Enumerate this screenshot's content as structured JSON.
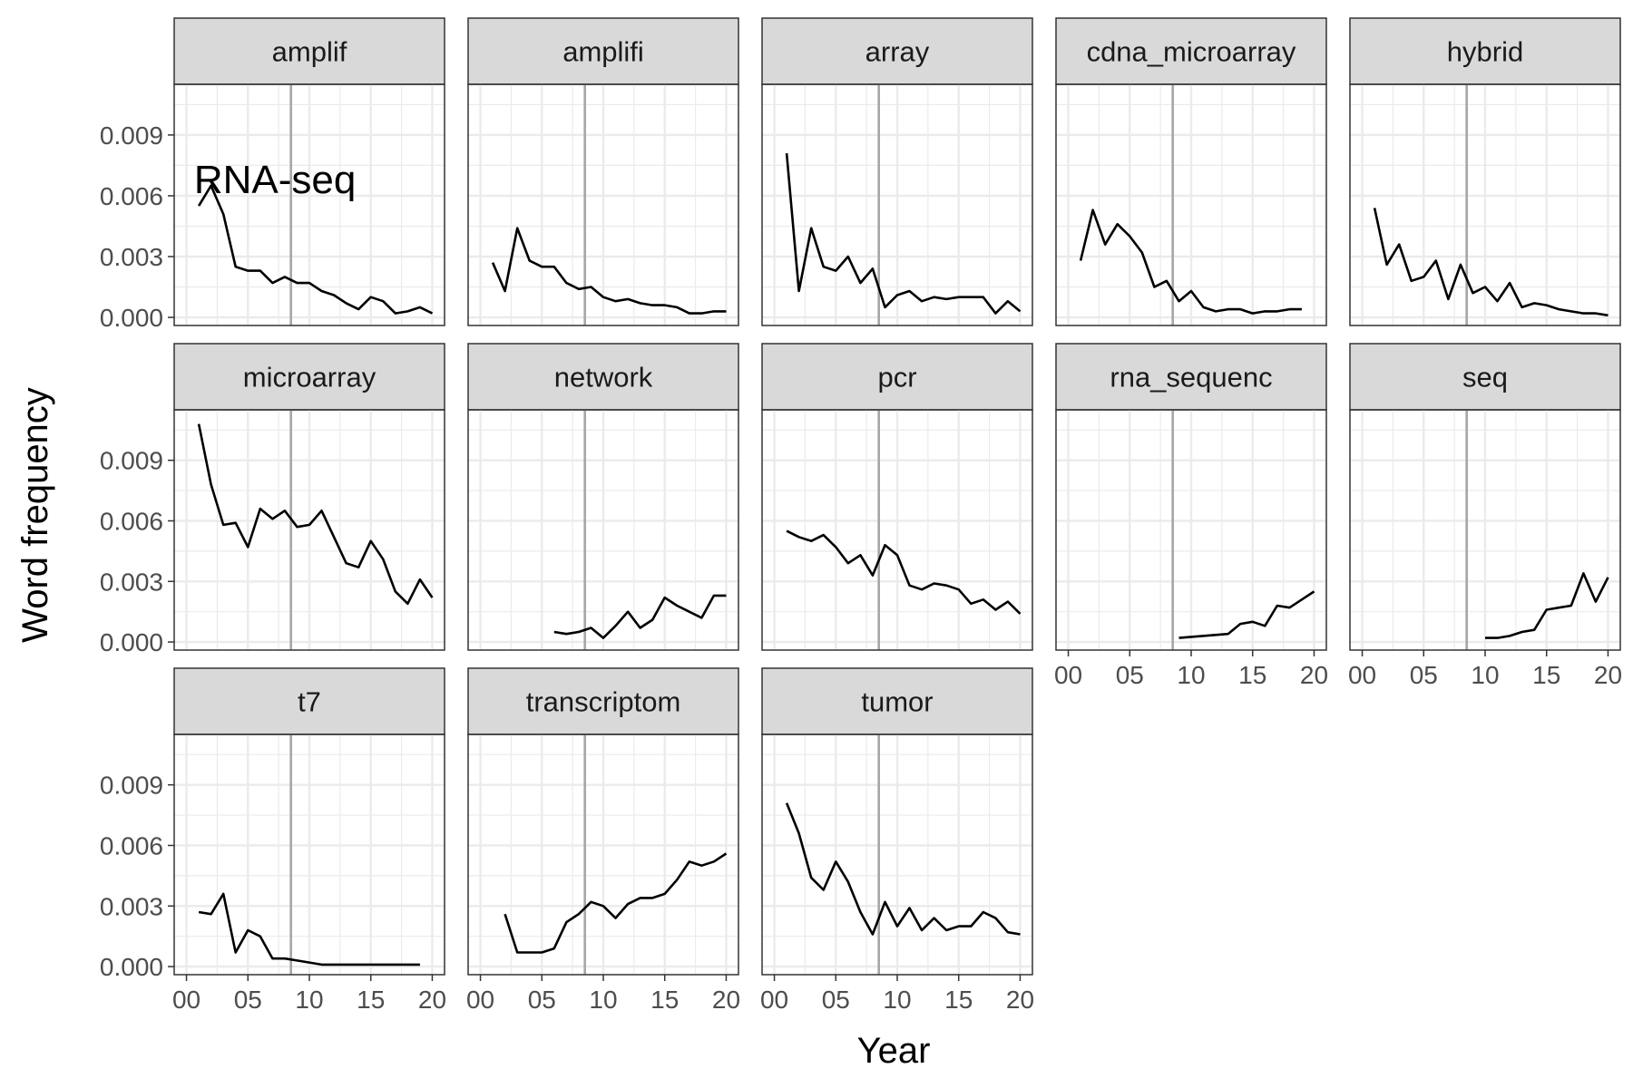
{
  "chart_data": {
    "type": "line",
    "layout": "facet_wrap",
    "xlabel": "Year",
    "ylabel": "Word frequency",
    "xlim": [
      -1,
      21
    ],
    "ylim": [
      -0.0004,
      0.0115
    ],
    "x_ticks": [
      0,
      5,
      10,
      15,
      20
    ],
    "x_tick_labels": [
      "00",
      "05",
      "10",
      "15",
      "20"
    ],
    "y_ticks": [
      0,
      0.003,
      0.006,
      0.009
    ],
    "y_tick_labels": [
      "0.000",
      "0.003",
      "0.006",
      "0.009"
    ],
    "grid": true,
    "reference_line_x": 8.5,
    "annotation": {
      "text": "RNA-seq",
      "x": 7.2,
      "y": 0.0068,
      "panel": "amplif"
    },
    "colors": {
      "line": "#000000",
      "strip_bg": "#d9d9d9",
      "grid": "#ebebeb",
      "vline": "#a6a6a6",
      "border": "#333333"
    },
    "panels": [
      {
        "title": "amplif",
        "x": [
          1,
          2,
          3,
          4,
          5,
          6,
          7,
          8,
          9,
          10,
          11,
          12,
          13,
          14,
          15,
          16,
          17,
          18,
          19,
          20
        ],
        "y": [
          0.0055,
          0.0065,
          0.0051,
          0.0025,
          0.0023,
          0.0023,
          0.0017,
          0.002,
          0.0017,
          0.0017,
          0.0013,
          0.0011,
          0.0007,
          0.0004,
          0.001,
          0.0008,
          0.0002,
          0.0003,
          0.0005,
          0.0002
        ]
      },
      {
        "title": "amplifi",
        "x": [
          1,
          2,
          3,
          4,
          5,
          6,
          7,
          8,
          9,
          10,
          11,
          12,
          13,
          14,
          15,
          16,
          17,
          18,
          19,
          20
        ],
        "y": [
          0.0027,
          0.0013,
          0.0044,
          0.0028,
          0.0025,
          0.0025,
          0.0017,
          0.0014,
          0.0015,
          0.001,
          0.0008,
          0.0009,
          0.0007,
          0.0006,
          0.0006,
          0.0005,
          0.0002,
          0.0002,
          0.0003,
          0.0003
        ]
      },
      {
        "title": "array",
        "x": [
          1,
          2,
          3,
          4,
          5,
          6,
          7,
          8,
          9,
          10,
          11,
          12,
          13,
          14,
          15,
          16,
          17,
          18,
          19,
          20
        ],
        "y": [
          0.0081,
          0.0013,
          0.0044,
          0.0025,
          0.0023,
          0.003,
          0.0017,
          0.0024,
          0.0005,
          0.0011,
          0.0013,
          0.0008,
          0.001,
          0.0009,
          0.001,
          0.001,
          0.001,
          0.0002,
          0.0008,
          0.0003
        ]
      },
      {
        "title": "cdna_microarray",
        "x": [
          1,
          2,
          3,
          4,
          5,
          6,
          7,
          8,
          9,
          10,
          11,
          12,
          13,
          14,
          15,
          16,
          17,
          18,
          19
        ],
        "y": [
          0.0028,
          0.0053,
          0.0036,
          0.0046,
          0.004,
          0.0032,
          0.0015,
          0.0018,
          0.0008,
          0.0013,
          0.0005,
          0.0003,
          0.0004,
          0.0004,
          0.0002,
          0.0003,
          0.0003,
          0.0004,
          0.0004
        ]
      },
      {
        "title": "hybrid",
        "x": [
          1,
          2,
          3,
          4,
          5,
          6,
          7,
          8,
          9,
          10,
          11,
          12,
          13,
          14,
          15,
          16,
          17,
          18,
          19,
          20
        ],
        "y": [
          0.0054,
          0.0026,
          0.0036,
          0.0018,
          0.002,
          0.0028,
          0.0009,
          0.0026,
          0.0012,
          0.0015,
          0.0008,
          0.0017,
          0.0005,
          0.0007,
          0.0006,
          0.0004,
          0.0003,
          0.0002,
          0.0002,
          0.0001
        ]
      },
      {
        "title": "microarray",
        "x": [
          1,
          2,
          3,
          4,
          5,
          6,
          7,
          8,
          9,
          10,
          11,
          12,
          13,
          14,
          15,
          16,
          17,
          18,
          19,
          20
        ],
        "y": [
          0.0108,
          0.0078,
          0.0058,
          0.0059,
          0.0047,
          0.0066,
          0.0061,
          0.0065,
          0.0057,
          0.0058,
          0.0065,
          0.0052,
          0.0039,
          0.0037,
          0.005,
          0.0041,
          0.0025,
          0.0019,
          0.0031,
          0.0022
        ]
      },
      {
        "title": "network",
        "x": [
          6,
          7,
          8,
          9,
          10,
          11,
          12,
          13,
          14,
          15,
          16,
          17,
          18,
          19,
          20
        ],
        "y": [
          0.0005,
          0.0004,
          0.0005,
          0.0007,
          0.0002,
          0.0008,
          0.0015,
          0.0007,
          0.0011,
          0.0022,
          0.0018,
          0.0015,
          0.0012,
          0.0023,
          0.0023
        ]
      },
      {
        "title": "pcr",
        "x": [
          1,
          2,
          3,
          4,
          5,
          6,
          7,
          8,
          9,
          10,
          11,
          12,
          13,
          14,
          15,
          16,
          17,
          18,
          19,
          20
        ],
        "y": [
          0.0055,
          0.0052,
          0.005,
          0.0053,
          0.0047,
          0.0039,
          0.0043,
          0.0033,
          0.0048,
          0.0043,
          0.0028,
          0.0026,
          0.0029,
          0.0028,
          0.0026,
          0.0019,
          0.0021,
          0.0016,
          0.002,
          0.0014
        ]
      },
      {
        "title": "rna_sequenc",
        "x": [
          9,
          13,
          14,
          15,
          16,
          17,
          18,
          19,
          20
        ],
        "y": [
          0.0002,
          0.0004,
          0.0009,
          0.001,
          0.0008,
          0.0018,
          0.0017,
          0.0021,
          0.0025
        ]
      },
      {
        "title": "seq",
        "x": [
          10,
          11,
          12,
          13,
          14,
          15,
          16,
          17,
          18,
          19,
          20
        ],
        "y": [
          0.0002,
          0.0002,
          0.0003,
          0.0005,
          0.0006,
          0.0016,
          0.0017,
          0.0018,
          0.0034,
          0.002,
          0.0032
        ]
      },
      {
        "title": "t7",
        "x": [
          1,
          2,
          3,
          4,
          5,
          6,
          7,
          8,
          9,
          10,
          11,
          12,
          13,
          14,
          15,
          16,
          17,
          18,
          19
        ],
        "y": [
          0.0027,
          0.0026,
          0.0036,
          0.0007,
          0.0018,
          0.0015,
          0.0004,
          0.0004,
          0.0003,
          0.0002,
          0.0001,
          0.0001,
          0.0001,
          0.0001,
          0.0001,
          0.0001,
          0.0001,
          0.0001,
          0.0001
        ]
      },
      {
        "title": "transcriptom",
        "x": [
          2,
          3,
          4,
          5,
          6,
          7,
          8,
          9,
          10,
          11,
          12,
          13,
          14,
          15,
          16,
          17,
          18,
          19,
          20
        ],
        "y": [
          0.0026,
          0.0007,
          0.0007,
          0.0007,
          0.0009,
          0.0022,
          0.0026,
          0.0032,
          0.003,
          0.0024,
          0.0031,
          0.0034,
          0.0034,
          0.0036,
          0.0043,
          0.0052,
          0.005,
          0.0052,
          0.0056
        ]
      },
      {
        "title": "tumor",
        "x": [
          1,
          2,
          3,
          4,
          5,
          6,
          7,
          8,
          9,
          10,
          11,
          12,
          13,
          14,
          15,
          16,
          17,
          18,
          19,
          20
        ],
        "y": [
          0.0081,
          0.0066,
          0.0044,
          0.0038,
          0.0052,
          0.0042,
          0.0027,
          0.0016,
          0.0032,
          0.002,
          0.0029,
          0.0018,
          0.0024,
          0.0018,
          0.002,
          0.002,
          0.0027,
          0.0024,
          0.0017,
          0.0016
        ]
      }
    ]
  }
}
